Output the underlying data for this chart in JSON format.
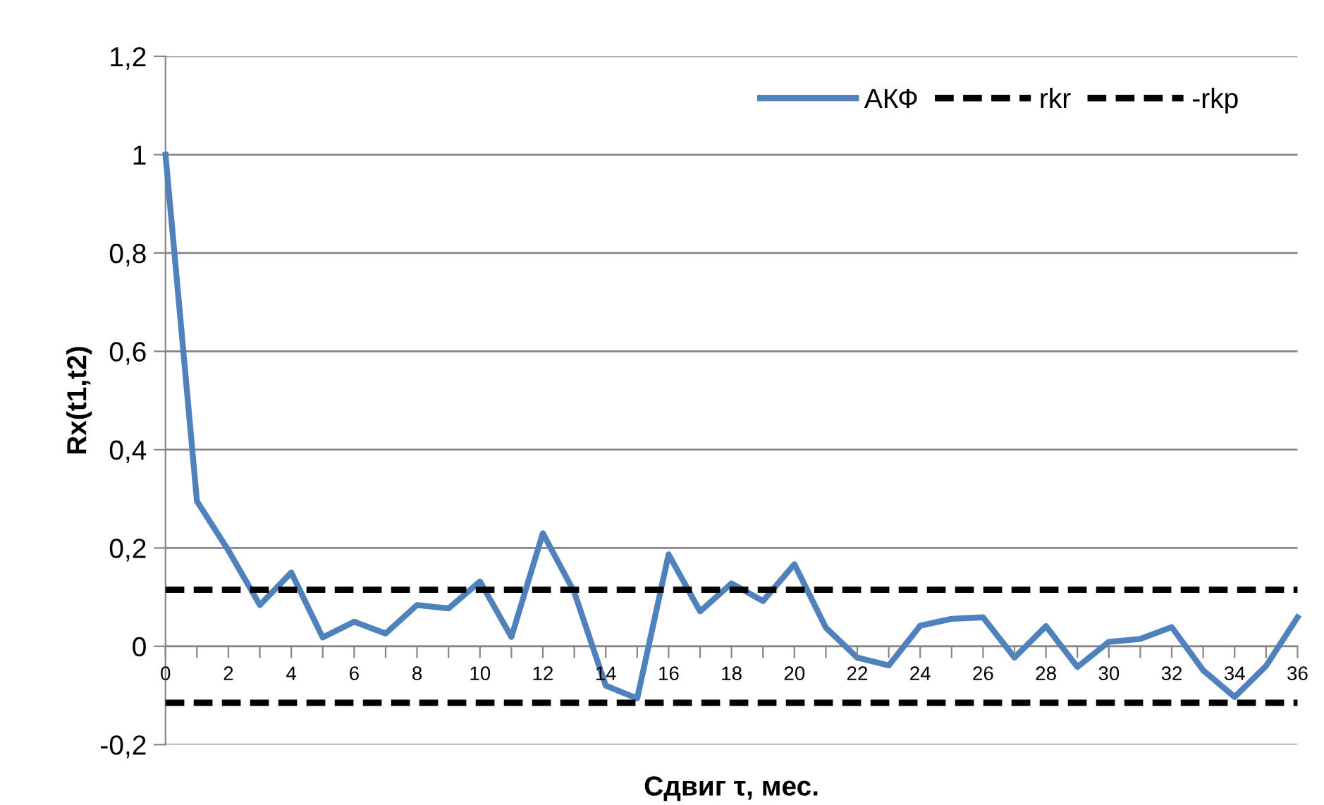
{
  "chart_data": {
    "type": "line",
    "xlabel": "Сдвиг τ, мес.",
    "ylabel": "Rx(t1,t2)",
    "xlim": [
      0,
      36
    ],
    "xticks": [
      0,
      {
        "value": 1,
        "label": null
      },
      2,
      {
        "value": 3,
        "label": null
      },
      4,
      {
        "value": 5,
        "label": null
      },
      6,
      {
        "value": 7,
        "label": null
      },
      8,
      {
        "value": 9,
        "label": null
      },
      10,
      {
        "value": 11,
        "label": null
      },
      12,
      {
        "value": 13,
        "label": null
      },
      14,
      {
        "value": 15,
        "label": null
      },
      16,
      {
        "value": 17,
        "label": null
      },
      18,
      {
        "value": 19,
        "label": null
      },
      20,
      {
        "value": 21,
        "label": null
      },
      22,
      {
        "value": 23,
        "label": null
      },
      24,
      {
        "value": 25,
        "label": null
      },
      26,
      {
        "value": 27,
        "label": null
      },
      28,
      {
        "value": 29,
        "label": null
      },
      30,
      {
        "value": 31,
        "label": null
      },
      32,
      {
        "value": 33,
        "label": null
      },
      34,
      {
        "value": 35,
        "label": null
      },
      36
    ],
    "ylim": [
      -0.2,
      1.2
    ],
    "yticks": [
      {
        "value": -0.2,
        "label": "-0,2"
      },
      0,
      {
        "value": 0.2,
        "label": "0,2"
      },
      {
        "value": 0.4,
        "label": "0,4"
      },
      {
        "value": 0.6,
        "label": "0,6"
      },
      {
        "value": 0.8,
        "label": "0,8"
      },
      1,
      {
        "value": 1.2,
        "label": "1,2"
      }
    ],
    "grid": "y",
    "legend": "top right",
    "series": [
      {
        "name": "АКФ",
        "color": "#4f81bd",
        "line_style": "solid",
        "x": [
          0,
          1,
          2,
          3,
          4,
          5,
          6,
          7,
          8,
          9,
          10,
          11,
          12,
          13,
          14,
          15,
          16,
          17,
          18,
          19,
          20,
          21,
          22,
          23,
          24,
          25,
          26,
          27,
          28,
          29,
          30,
          31,
          32,
          33,
          34,
          35,
          36
        ],
        "values": [
          1.0,
          0.295,
          0.195,
          0.084,
          0.15,
          0.018,
          0.05,
          0.026,
          0.084,
          0.077,
          0.132,
          0.019,
          0.23,
          0.11,
          -0.08,
          -0.106,
          0.187,
          0.071,
          0.128,
          0.092,
          0.167,
          0.038,
          -0.023,
          -0.039,
          0.042,
          0.056,
          0.059,
          -0.023,
          0.041,
          -0.042,
          0.009,
          0.015,
          0.039,
          -0.049,
          -0.103,
          -0.04,
          0.059
        ]
      },
      {
        "name": "rkr",
        "color": "#000000",
        "line_style": "dashed",
        "x": [
          0,
          36
        ],
        "values": [
          0.115,
          0.115
        ]
      },
      {
        "name": "-rkp",
        "color": "#000000",
        "line_style": "dashed",
        "x": [
          0,
          36
        ],
        "values": [
          -0.115,
          -0.115
        ]
      }
    ]
  }
}
